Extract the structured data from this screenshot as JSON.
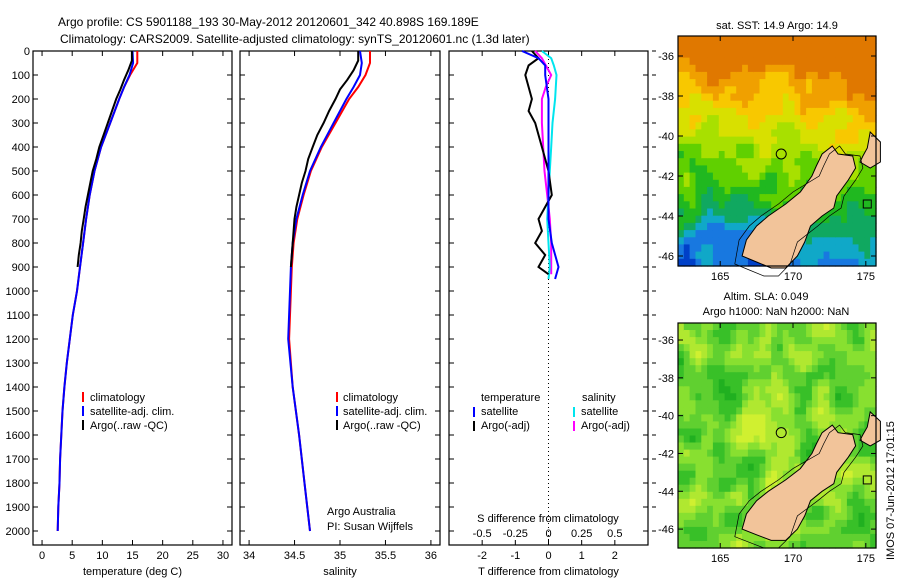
{
  "title_line1": "Argo profile: CS 5901188_193 30-May-2012 20120601_342 40.898S 169.189E",
  "title_line2": "Climatology: CARS2009. Satellite-adjusted climatology: synTS_20120601.nc (1.3d later)",
  "side_stamp": "IMOS 07-Jun-2012 17:01:15",
  "credit": {
    "line1": "Argo Australia",
    "line2": "PI: Susan Wijffels"
  },
  "colors": {
    "climatology": "#ff0000",
    "satellite": "#0000ff",
    "argo": "#000000",
    "sal_satellite": "#00e5ee",
    "sal_argo": "#ff00ff"
  },
  "chart_data": [
    {
      "type": "line",
      "xlabel": "temperature (deg C)",
      "ylabel": "",
      "xlim": [
        -1.5,
        31.5
      ],
      "ylim": [
        2000,
        0
      ],
      "xticks": [
        "0",
        "5",
        "10",
        "15",
        "20",
        "25",
        "30"
      ],
      "yticks": [
        "0",
        "100",
        "200",
        "300",
        "400",
        "500",
        "600",
        "700",
        "800",
        "900",
        "1000",
        "1100",
        "1200",
        "1300",
        "1400",
        "1500",
        "1600",
        "1700",
        "1800",
        "1900",
        "2000"
      ],
      "legend": [
        "climatology",
        "satellite-adj. clim.",
        "Argo(..raw -QC)"
      ],
      "series": [
        {
          "name": "climatology",
          "depth": [
            0,
            50,
            100,
            150,
            200,
            300,
            400,
            500,
            600,
            700,
            800,
            900,
            1000,
            1100,
            1200,
            1300,
            1400,
            1500,
            1600,
            1700,
            1800,
            1900,
            2000
          ],
          "values": [
            15.8,
            15.8,
            14.6,
            13.6,
            12.8,
            11.3,
            9.8,
            8.7,
            7.9,
            7.3,
            6.8,
            6.3,
            5.8,
            5.1,
            4.6,
            4.1,
            3.7,
            3.4,
            3.2,
            3.0,
            2.9,
            2.7,
            2.6
          ]
        },
        {
          "name": "satellite-adj. clim.",
          "depth": [
            0,
            50,
            100,
            150,
            200,
            300,
            400,
            500,
            600,
            700,
            800,
            900,
            1000,
            1100,
            1200,
            1300,
            1400,
            1500,
            1600,
            1700,
            1800,
            1900,
            2000
          ],
          "values": [
            15.0,
            15.1,
            14.5,
            13.6,
            12.8,
            11.3,
            9.8,
            8.7,
            7.9,
            7.3,
            6.8,
            6.3,
            5.8,
            5.1,
            4.6,
            4.1,
            3.7,
            3.4,
            3.2,
            3.0,
            2.9,
            2.7,
            2.6
          ]
        },
        {
          "name": "Argo(..raw -QC)",
          "depth": [
            0,
            40,
            80,
            120,
            160,
            200,
            250,
            300,
            350,
            400,
            450,
            500,
            550,
            600,
            650,
            700,
            750,
            800,
            850,
            900
          ],
          "values": [
            14.9,
            14.9,
            14.3,
            13.6,
            13.0,
            12.3,
            11.6,
            10.9,
            10.2,
            9.5,
            9.0,
            8.4,
            8.0,
            7.6,
            7.2,
            6.9,
            6.6,
            6.4,
            6.1,
            5.9
          ]
        }
      ]
    },
    {
      "type": "line",
      "xlabel": "salinity",
      "xlim": [
        33.9,
        36.1
      ],
      "ylim": [
        2000,
        0
      ],
      "xticks": [
        "34",
        "34.5",
        "35",
        "35.5",
        "36"
      ],
      "legend": [
        "climatology",
        "satellite-adj. clim.",
        "Argo(..raw -QC)"
      ],
      "series": [
        {
          "name": "climatology",
          "depth": [
            0,
            50,
            100,
            150,
            200,
            300,
            400,
            500,
            600,
            700,
            800,
            900,
            1000,
            1200,
            1400,
            1600,
            1800,
            2000
          ],
          "values": [
            35.33,
            35.33,
            35.28,
            35.2,
            35.1,
            34.95,
            34.8,
            34.68,
            34.6,
            34.53,
            34.49,
            34.47,
            34.46,
            34.44,
            34.48,
            34.55,
            34.61,
            34.67
          ]
        },
        {
          "name": "satellite-adj. clim.",
          "depth": [
            0,
            50,
            100,
            150,
            200,
            300,
            400,
            500,
            600,
            700,
            800,
            900,
            1000,
            1200,
            1400,
            1600,
            1800,
            2000
          ],
          "values": [
            35.22,
            35.24,
            35.22,
            35.15,
            35.07,
            34.93,
            34.79,
            34.67,
            34.59,
            34.52,
            34.48,
            34.46,
            34.45,
            34.43,
            34.48,
            34.55,
            34.61,
            34.67
          ]
        },
        {
          "name": "Argo(..raw -QC)",
          "depth": [
            0,
            40,
            80,
            120,
            160,
            200,
            250,
            300,
            350,
            400,
            450,
            500,
            550,
            600,
            650,
            700,
            750,
            800,
            850,
            900
          ],
          "values": [
            35.2,
            35.2,
            35.15,
            35.08,
            35.0,
            34.95,
            34.88,
            34.82,
            34.75,
            34.7,
            34.65,
            34.62,
            34.58,
            34.55,
            34.52,
            34.5,
            34.49,
            34.48,
            34.47,
            34.46
          ]
        }
      ]
    },
    {
      "type": "line",
      "xlabel": "T difference from climatology",
      "x2label": "S difference from climatology",
      "xlim": [
        -3,
        3
      ],
      "ylim": [
        2000,
        0
      ],
      "xticks": [
        "-2",
        "-1",
        "0",
        "1",
        "2"
      ],
      "x2ticks": [
        "-0.5",
        "-0.25",
        "0",
        "0.25",
        "0.5"
      ],
      "legend_headers": [
        "temperature",
        "salinity"
      ],
      "legend": [
        "satellite",
        "Argo(-adj)",
        "satellite",
        "Argo(-adj)"
      ],
      "series": [
        {
          "name": "T satellite",
          "depth": [
            0,
            30,
            60,
            100,
            200,
            300,
            400,
            500,
            600,
            700,
            800,
            900,
            950
          ],
          "values": [
            -0.8,
            -0.3,
            -0.1,
            -0.1,
            0,
            0,
            0,
            0,
            0,
            0,
            0.1,
            0.3,
            0.2
          ]
        },
        {
          "name": "T Argo(-adj)",
          "depth": [
            0,
            30,
            60,
            100,
            150,
            200,
            250,
            300,
            400,
            500,
            600,
            700,
            750,
            800,
            850,
            900,
            930
          ],
          "values": [
            -0.5,
            -0.3,
            -0.6,
            -0.7,
            -0.6,
            -0.5,
            -0.6,
            -0.4,
            -0.2,
            0,
            0.1,
            -0.3,
            -0.2,
            -0.4,
            -0.1,
            -0.3,
            0
          ]
        },
        {
          "name": "S satellite",
          "depth": [
            0,
            30,
            60,
            100,
            200,
            300,
            400,
            500,
            600,
            700,
            800,
            900,
            950
          ],
          "values": [
            -0.05,
            0.02,
            0.04,
            0.06,
            0.05,
            0.03,
            0.02,
            0.01,
            0,
            -0.01,
            0,
            0.01,
            0
          ]
        },
        {
          "name": "S Argo(-adj)",
          "depth": [
            0,
            30,
            60,
            100,
            150,
            200,
            300,
            400,
            500,
            600,
            700,
            800,
            900,
            930
          ],
          "values": [
            -0.1,
            -0.05,
            -0.02,
            0.02,
            -0.02,
            -0.05,
            -0.05,
            -0.04,
            -0.03,
            -0.01,
            0.01,
            0.02,
            0.02,
            0.02
          ]
        }
      ]
    },
    {
      "type": "heatmap",
      "title": "sat. SST: 14.9 Argo: 14.9",
      "xticks": [
        "165",
        "170",
        "175"
      ],
      "yticks": [
        "-36",
        "-38",
        "-40",
        "-42",
        "-44",
        "-46"
      ]
    },
    {
      "type": "heatmap",
      "title_line1": "Altim. SLA: 0.049",
      "title_line2": "Argo h1000: NaN h2000: NaN",
      "xticks": [
        "165",
        "170",
        "175"
      ],
      "yticks": [
        "-36",
        "-38",
        "-40",
        "-42",
        "-44",
        "-46"
      ]
    }
  ]
}
